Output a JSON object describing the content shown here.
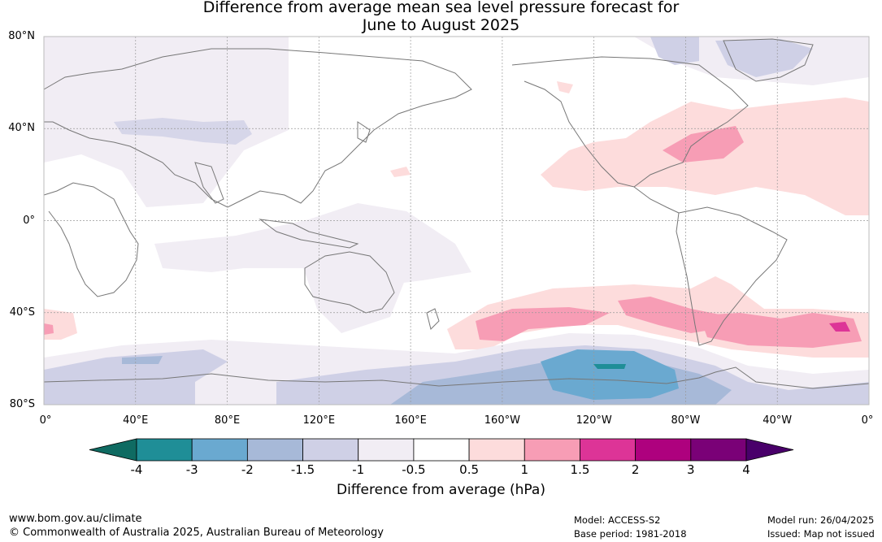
{
  "title": {
    "line1": "Difference from average mean sea level pressure forecast for",
    "line2": "June to August 2025"
  },
  "map": {
    "lat_labels": [
      "80°N",
      "40°N",
      "0°",
      "40°S",
      "80°S"
    ],
    "lat_values": [
      80,
      40,
      0,
      -40,
      -80
    ],
    "lon_labels": [
      "0°",
      "40°E",
      "80°E",
      "120°E",
      "160°E",
      "160°W",
      "120°W",
      "80°W",
      "40°W",
      "0°"
    ],
    "lon_values": [
      0,
      40,
      80,
      120,
      160,
      200,
      240,
      280,
      320,
      360
    ],
    "grid": true
  },
  "colorbar": {
    "labels": [
      "-4",
      "-3",
      "-2",
      "-1.5",
      "-1",
      "-0.5",
      "0.5",
      "1",
      "1.5",
      "2",
      "3",
      "4"
    ],
    "colors": [
      "#0f6b62",
      "#1f8e97",
      "#6aa9d0",
      "#a7b9d8",
      "#cfd0e6",
      "#f1edf4",
      "#ffffff",
      "#fddcdc",
      "#f79db5",
      "#dd3497",
      "#ae017e",
      "#7a0177",
      "#49006a"
    ],
    "title": "Difference from average (hPa)"
  },
  "footer": {
    "url": "www.bom.gov.au/climate",
    "copyright": "© Commonwealth of Australia 2025, Australian Bureau of Meteorology",
    "model": "Model: ACCESS-S2",
    "base_period": "Base period: 1981-2018",
    "model_run": "Model run: 26/04/2025",
    "issued": "Issued: Map not issued"
  }
}
